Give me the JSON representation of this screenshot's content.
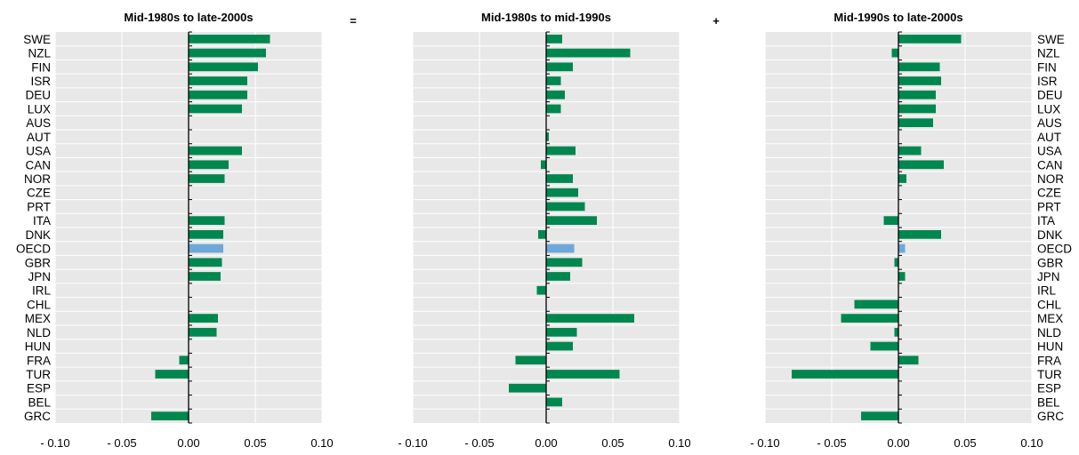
{
  "chart_data": {
    "type": "bar",
    "orientation": "horizontal",
    "categories": [
      "SWE",
      "NZL",
      "FIN",
      "ISR",
      "DEU",
      "LUX",
      "AUS",
      "AUT",
      "USA",
      "CAN",
      "NOR",
      "CZE",
      "PRT",
      "ITA",
      "DNK",
      "OECD",
      "GBR",
      "JPN",
      "IRL",
      "CHL",
      "MEX",
      "NLD",
      "HUN",
      "FRA",
      "TUR",
      "ESP",
      "BEL",
      "GRC"
    ],
    "highlight_category": "OECD",
    "xlim": [
      -0.1,
      0.1
    ],
    "xticks": [
      "- 0.10",
      "- 0.05",
      "0.00",
      "0.05",
      "0.10"
    ],
    "grid": true,
    "colors": {
      "bar": "#00874f",
      "highlight": "#6ea8d8",
      "plot_bg": "#e8e8e8",
      "grid": "#ffffff"
    },
    "operators": [
      "=",
      "+"
    ],
    "panels": [
      {
        "title": "Mid-1980s to late-2000s",
        "values": [
          0.061,
          0.058,
          0.052,
          0.044,
          0.044,
          0.04,
          null,
          null,
          0.04,
          0.03,
          0.027,
          null,
          null,
          0.027,
          0.026,
          0.026,
          0.025,
          0.024,
          null,
          null,
          0.022,
          0.021,
          null,
          -0.007,
          -0.025,
          null,
          null,
          -0.028
        ]
      },
      {
        "title": "Mid-1980s to mid-1990s",
        "values": [
          0.012,
          0.063,
          0.02,
          0.011,
          0.014,
          0.011,
          null,
          0.002,
          0.022,
          -0.004,
          0.02,
          0.024,
          0.029,
          0.038,
          -0.006,
          0.021,
          0.027,
          0.018,
          -0.007,
          null,
          0.066,
          0.023,
          0.02,
          -0.023,
          0.055,
          -0.028,
          0.012,
          null
        ]
      },
      {
        "title": "Mid-1990s to late-2000s",
        "values": [
          0.047,
          -0.005,
          0.031,
          0.032,
          0.028,
          0.028,
          0.026,
          null,
          0.017,
          0.034,
          0.006,
          null,
          null,
          -0.011,
          0.032,
          0.005,
          -0.003,
          0.005,
          null,
          -0.033,
          -0.043,
          -0.003,
          -0.021,
          0.015,
          -0.08,
          null,
          null,
          -0.028
        ]
      }
    ]
  }
}
